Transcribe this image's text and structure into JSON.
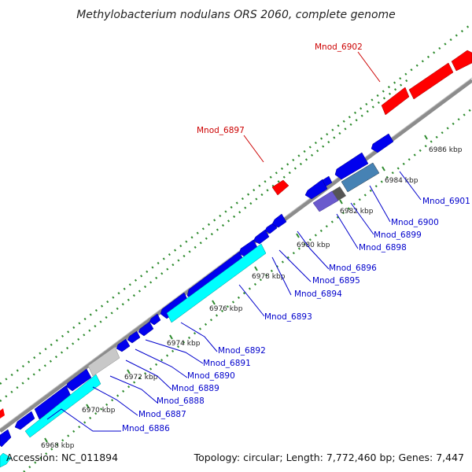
{
  "title": "Methylobacterium nodulans ORS 2060, complete genome",
  "footer": {
    "accession": "Accession: NC_011894",
    "summary": "Topology: circular; Length: 7,772,460 bp; Genes: 7,447"
  },
  "colors": {
    "backbone": "#8c8c8c",
    "tick_marks": "#2e8b2e",
    "forward_gene": "#ff0000",
    "reverse_gene": "#0000ee",
    "rna_gene": "#00ffff",
    "pseudo_gene": "#c8c8c8",
    "label_reverse": "#0000cc",
    "label_forward": "#cc0000"
  },
  "ticks": [
    {
      "label": "6968 kbp"
    },
    {
      "label": "6970 kbp"
    },
    {
      "label": "6972 kbp"
    },
    {
      "label": "6974 kbp"
    },
    {
      "label": "6976 kbp"
    },
    {
      "label": "6978 kbp"
    },
    {
      "label": "6980 kbp"
    },
    {
      "label": "6982 kbp"
    },
    {
      "label": "6984 kbp"
    },
    {
      "label": "6986 kbp"
    }
  ],
  "gene_labels": [
    {
      "name": "Mnod_6886",
      "strand": "reverse"
    },
    {
      "name": "Mnod_6887",
      "strand": "reverse"
    },
    {
      "name": "Mnod_6888",
      "strand": "reverse"
    },
    {
      "name": "Mnod_6889",
      "strand": "reverse"
    },
    {
      "name": "Mnod_6890",
      "strand": "reverse"
    },
    {
      "name": "Mnod_6891",
      "strand": "reverse"
    },
    {
      "name": "Mnod_6892",
      "strand": "reverse"
    },
    {
      "name": "Mnod_6893",
      "strand": "reverse"
    },
    {
      "name": "Mnod_6894",
      "strand": "reverse"
    },
    {
      "name": "Mnod_6895",
      "strand": "reverse"
    },
    {
      "name": "Mnod_6896",
      "strand": "reverse"
    },
    {
      "name": "Mnod_6898",
      "strand": "reverse"
    },
    {
      "name": "Mnod_6899",
      "strand": "reverse"
    },
    {
      "name": "Mnod_6900",
      "strand": "reverse"
    },
    {
      "name": "Mnod_6901",
      "strand": "reverse"
    },
    {
      "name": "Mnod_6897",
      "strand": "forward"
    },
    {
      "name": "Mnod_6902",
      "strand": "forward"
    }
  ]
}
